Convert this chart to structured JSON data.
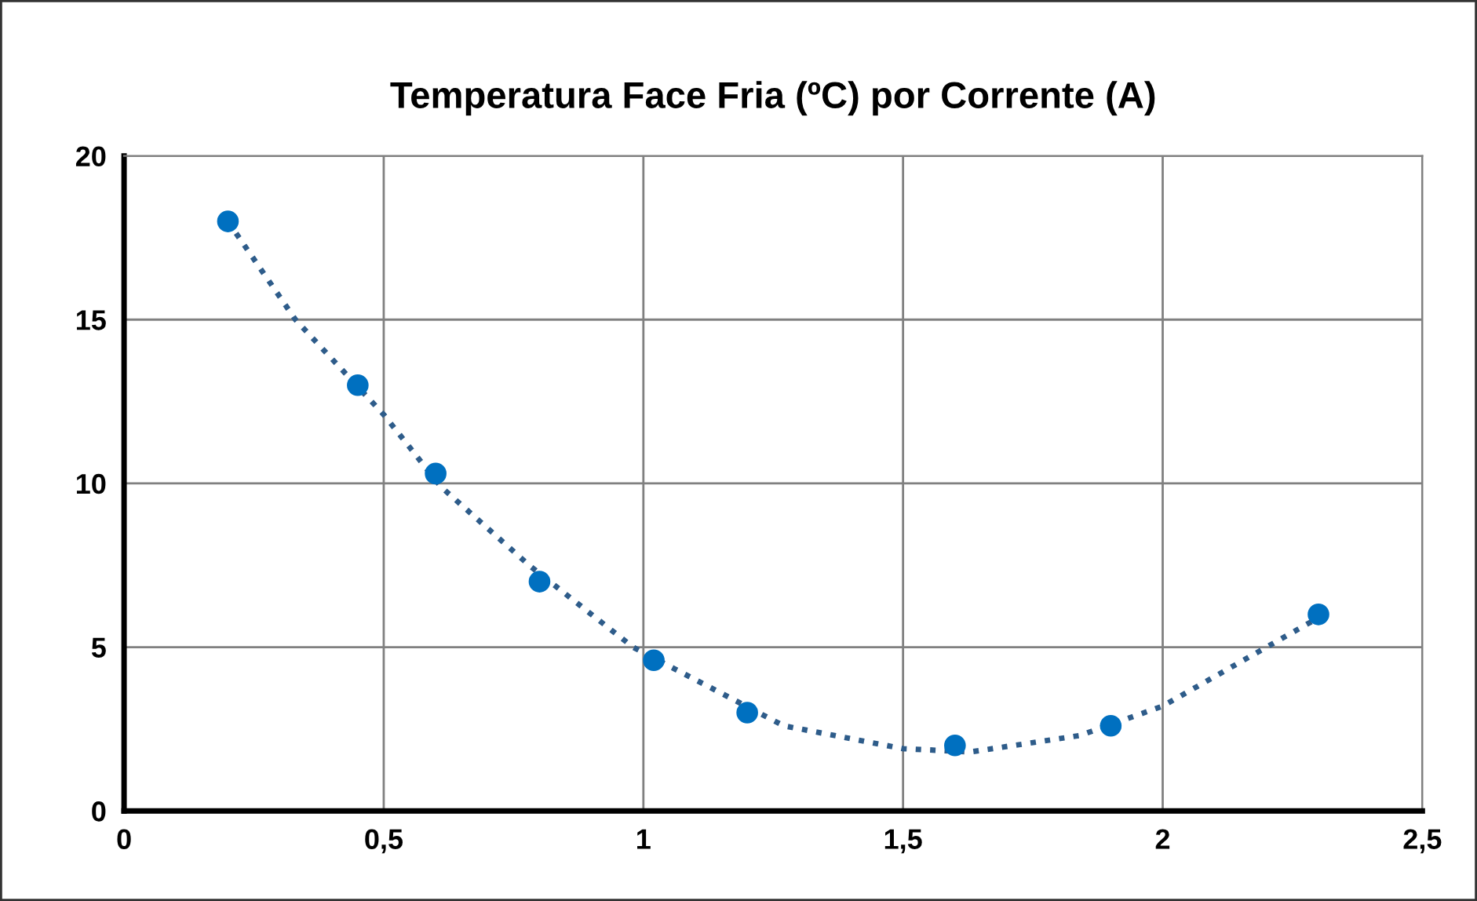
{
  "chart_data": {
    "type": "scatter",
    "title": "Temperatura Face Fria (ºC) por Corrente (A)",
    "series": [
      {
        "color": "#0070c0",
        "marker": "circle",
        "x": [
          0.2,
          0.45,
          0.6,
          0.8,
          1.02,
          1.2,
          1.6,
          1.9,
          2.3
        ],
        "values": [
          18,
          13,
          10.3,
          7,
          4.6,
          3,
          2,
          2.6,
          6
        ]
      },
      {
        "type": "line",
        "color": "#2e5c8a",
        "line_style": "dotted",
        "marker": "none",
        "x": [
          0.2,
          0.33,
          0.5,
          0.61,
          0.78,
          0.98,
          1.27,
          1.5,
          1.63,
          1.84,
          2.0,
          2.2,
          2.3
        ],
        "values": [
          18,
          15,
          12.1,
          9.9,
          7.5,
          5,
          2.6,
          1.9,
          1.8,
          2.3,
          3.2,
          5,
          5.9
        ]
      }
    ],
    "xlim": [
      0,
      2.5
    ],
    "xticks": [
      0,
      {
        "value": 0.5,
        "label": "0,5"
      },
      1,
      {
        "value": 1.5,
        "label": "1,5"
      },
      2,
      {
        "value": 2.5,
        "label": "2,5"
      }
    ],
    "ylim": [
      0,
      20
    ],
    "yticks": [
      0,
      5,
      10,
      15,
      20
    ],
    "grid": true,
    "legend": false
  }
}
